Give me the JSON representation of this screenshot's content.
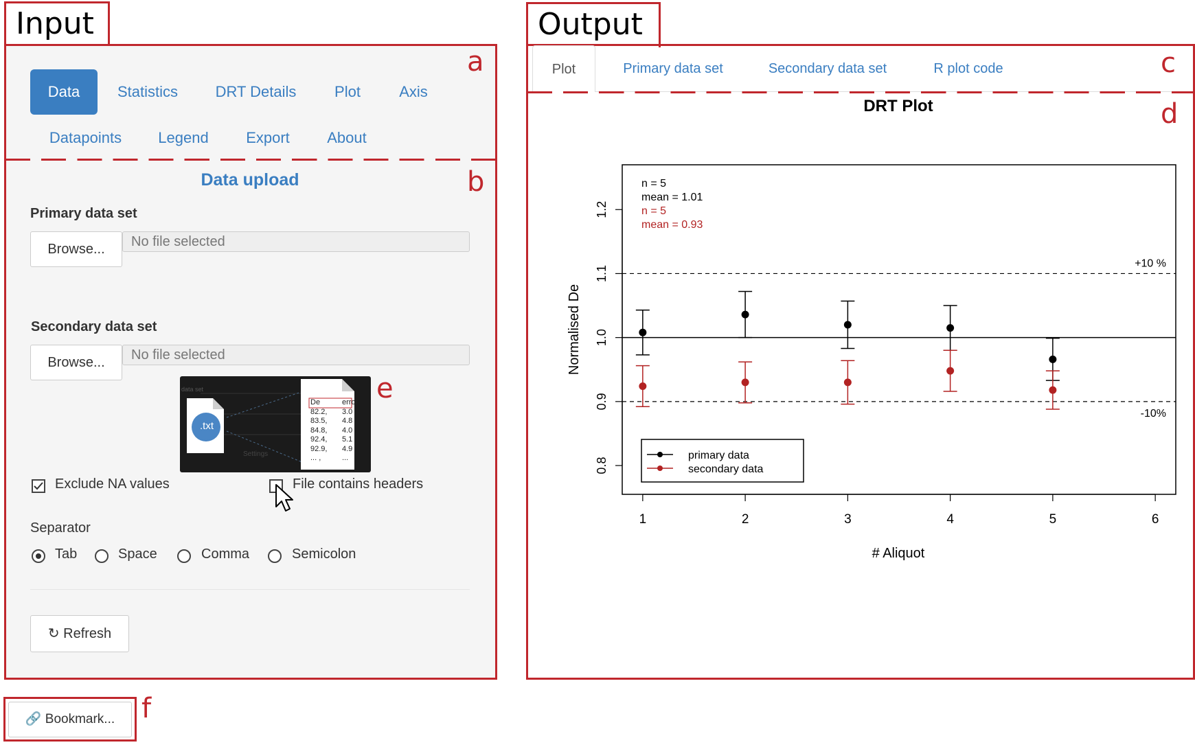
{
  "labels": {
    "input": "Input",
    "output": "Output"
  },
  "markers": {
    "a": "a",
    "b": "b",
    "c": "c",
    "d": "d",
    "e": "e",
    "f": "f"
  },
  "input_tabs": [
    "Data",
    "Statistics",
    "DRT Details",
    "Plot",
    "Axis",
    "Datapoints",
    "Legend",
    "Export",
    "About"
  ],
  "upload": {
    "title": "Data upload",
    "primary_label": "Primary data set",
    "secondary_label": "Secondary data set",
    "browse_label": "Browse...",
    "no_file": "No file selected",
    "exclude_na_label": "Exclude NA values",
    "exclude_na_checked": true,
    "headers_label": "File contains headers",
    "headers_checked": false,
    "separator_label": "Separator",
    "separators": [
      "Tab",
      "Space",
      "Comma",
      "Semicolon"
    ],
    "selected_separator": "Tab",
    "refresh_label": "Refresh"
  },
  "tooltip": {
    "file_tag": ".txt",
    "small_text_1": "data set",
    "small_text_2": "Settings",
    "table_header": [
      "De",
      "error"
    ],
    "table_rows": [
      [
        "82.2,",
        "3.0"
      ],
      [
        "83.5,",
        "4.8"
      ],
      [
        "84.8,",
        "4.0"
      ],
      [
        "92.4,",
        "5.1"
      ],
      [
        "92.9,",
        "4.9"
      ],
      [
        "... ,",
        "..."
      ]
    ]
  },
  "bookmark_label": "Bookmark...",
  "output_tabs": [
    "Plot",
    "Primary data set",
    "Secondary data set",
    "R plot code"
  ],
  "colors": {
    "accent": "#3a7ec1",
    "frame": "#c0272d",
    "secondary_series": "#b22222"
  },
  "chart_data": {
    "type": "scatter",
    "title": "DRT Plot",
    "xlabel": "# Aliquot",
    "ylabel": "Normalised De",
    "xlim": [
      0.8,
      6.2
    ],
    "ylim": [
      0.755,
      1.27
    ],
    "xticks": [
      1,
      2,
      3,
      4,
      5,
      6
    ],
    "yticks": [
      0.8,
      0.9,
      1.0,
      1.1,
      1.2
    ],
    "ytick_labels": [
      "0.8",
      "0.9",
      "1.0",
      "1.1",
      "1.2"
    ],
    "reference_line": 1.0,
    "bounds": [
      {
        "y": 1.1,
        "label": "+10 %"
      },
      {
        "y": 0.9,
        "label": "-10%"
      }
    ],
    "series": [
      {
        "name": "primary data",
        "color": "#000000",
        "x": [
          1,
          2,
          3,
          4,
          5
        ],
        "y": [
          1.008,
          1.036,
          1.02,
          1.015,
          0.966
        ],
        "err": [
          0.035,
          0.036,
          0.037,
          0.035,
          0.033
        ]
      },
      {
        "name": "secondary data",
        "color": "#b22222",
        "x": [
          1,
          2,
          3,
          4,
          5
        ],
        "y": [
          0.924,
          0.93,
          0.93,
          0.948,
          0.918
        ],
        "err": [
          0.032,
          0.032,
          0.034,
          0.032,
          0.03
        ]
      }
    ],
    "stats": [
      {
        "text": "n = 5",
        "color": "#000000"
      },
      {
        "text": "mean = 1.01",
        "color": "#000000"
      },
      {
        "text": "n = 5",
        "color": "#b22222"
      },
      {
        "text": "mean = 0.93",
        "color": "#b22222"
      }
    ],
    "legend_position": "bottom-left"
  }
}
